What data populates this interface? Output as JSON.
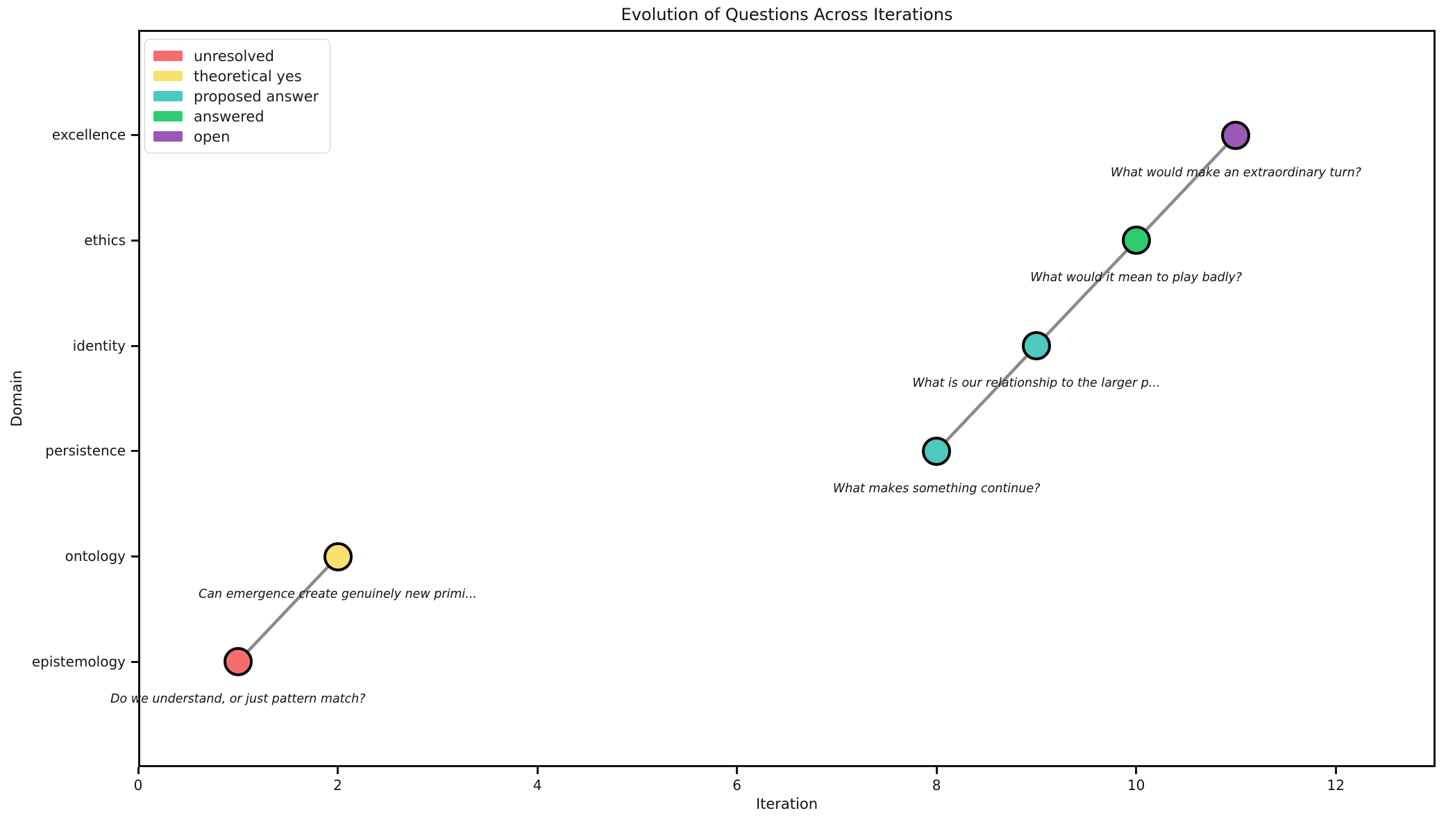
{
  "chart_data": {
    "type": "scatter",
    "title": "Evolution of Questions Across Iterations",
    "xlabel": "Iteration",
    "ylabel": "Domain",
    "xlim": [
      0,
      13
    ],
    "x_ticks": [
      0,
      2,
      4,
      6,
      8,
      10,
      12
    ],
    "y_categories": [
      "epistemology",
      "ontology",
      "persistence",
      "identity",
      "ethics",
      "excellence"
    ],
    "ylim_categories": [
      -1,
      6
    ],
    "grid": false,
    "legend_position": "upper left",
    "line": {
      "color": "#8a8a8a",
      "width": 4.5,
      "segments": [
        [
          0,
          1
        ],
        [
          2,
          3,
          4,
          5
        ]
      ]
    },
    "marker": {
      "edge_color": "#000000",
      "diameter": 42
    },
    "status_colors": {
      "unresolved": "#f76d6d",
      "theoretical yes": "#fae06e",
      "proposed answer": "#4dc9c0",
      "answered": "#2ecc71",
      "open": "#9b59b6"
    },
    "legend": [
      {
        "label": "unresolved",
        "color": "#f76d6d"
      },
      {
        "label": "theoretical yes",
        "color": "#fae06e"
      },
      {
        "label": "proposed answer",
        "color": "#4dc9c0"
      },
      {
        "label": "answered",
        "color": "#2ecc71"
      },
      {
        "label": "open",
        "color": "#9b59b6"
      }
    ],
    "points": [
      {
        "x": 1,
        "domain": "epistemology",
        "status": "unresolved",
        "annotation": "Do we understand, or just pattern match?"
      },
      {
        "x": 2,
        "domain": "ontology",
        "status": "theoretical yes",
        "annotation": "Can emergence create genuinely new primi..."
      },
      {
        "x": 8,
        "domain": "persistence",
        "status": "proposed answer",
        "annotation": "What makes something continue?"
      },
      {
        "x": 9,
        "domain": "identity",
        "status": "proposed answer",
        "annotation": "What is our relationship to the larger p..."
      },
      {
        "x": 10,
        "domain": "ethics",
        "status": "answered",
        "annotation": "What would it mean to play badly?"
      },
      {
        "x": 11,
        "domain": "excellence",
        "status": "open",
        "annotation": "What would make an extraordinary turn?"
      }
    ]
  }
}
